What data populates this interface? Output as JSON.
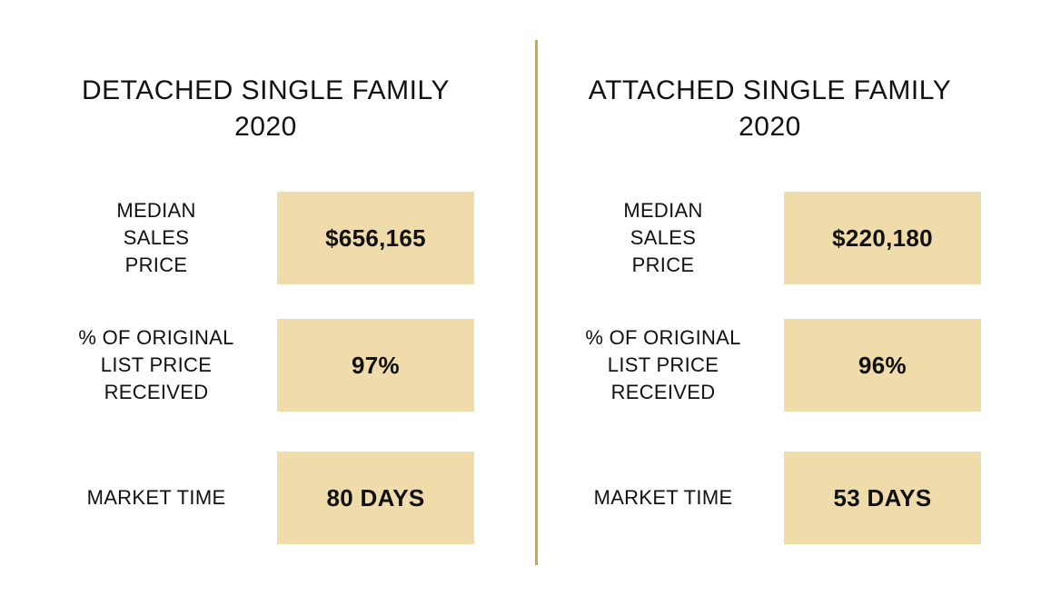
{
  "panels": [
    {
      "title_line1": "DETACHED SINGLE FAMILY",
      "title_line2": "2020",
      "rows": [
        {
          "label": "MEDIAN\nSALES\nPRICE",
          "label_lines": [
            "MEDIAN",
            "SALES",
            "PRICE"
          ],
          "value": "$656,165"
        },
        {
          "label_lines": [
            "% OF ORIGINAL",
            "LIST PRICE",
            "RECEIVED"
          ],
          "value": "97%"
        },
        {
          "label_lines": [
            "MARKET TIME"
          ],
          "value": "80 DAYS"
        }
      ]
    },
    {
      "title_line1": "ATTACHED SINGLE FAMILY",
      "title_line2": "2020",
      "rows": [
        {
          "label_lines": [
            "MEDIAN",
            "SALES",
            "PRICE"
          ],
          "value": "$220,180"
        },
        {
          "label_lines": [
            "% OF ORIGINAL",
            "LIST PRICE",
            "RECEIVED"
          ],
          "value": "96%"
        },
        {
          "label_lines": [
            "MARKET TIME"
          ],
          "value": "53 DAYS"
        }
      ]
    }
  ],
  "colors": {
    "divider": "#c9a84a",
    "box_fill": "#f0dcaa",
    "text": "#111111"
  }
}
